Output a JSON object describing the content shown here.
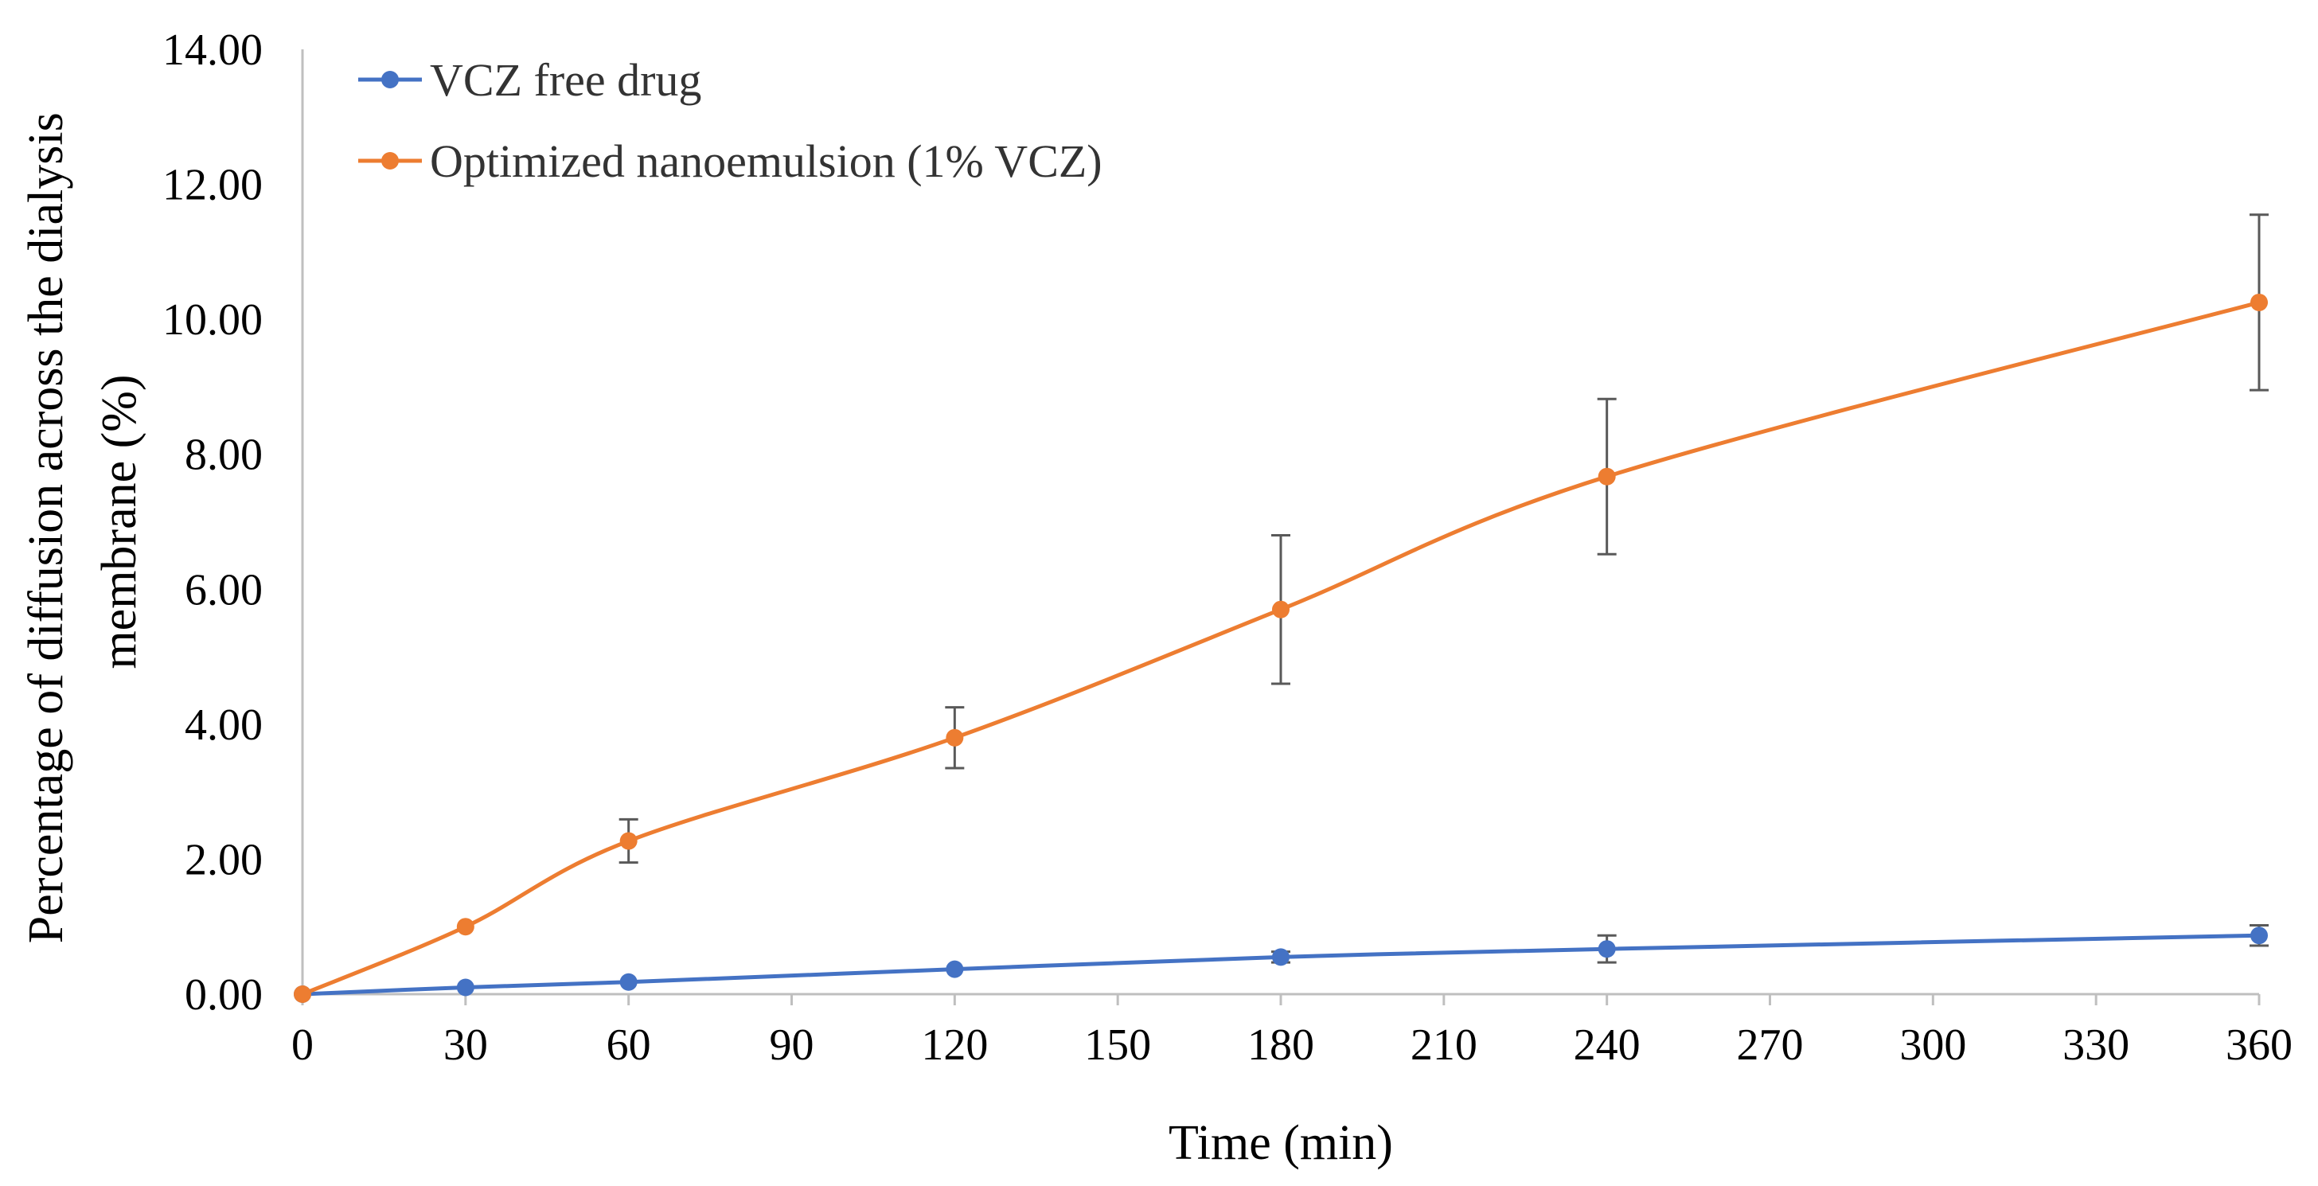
{
  "chart_data": {
    "type": "line",
    "xlabel": "Time (min)",
    "ylabel_lines": [
      "Percentage of diffusion across the dialysis",
      "membrane (%)"
    ],
    "xlim": [
      0,
      360
    ],
    "ylim": [
      0,
      14
    ],
    "xticks": [
      "0",
      "30",
      "60",
      "90",
      "120",
      "150",
      "180",
      "210",
      "240",
      "270",
      "300",
      "330",
      "360"
    ],
    "xtick_values": [
      0,
      30,
      60,
      90,
      120,
      150,
      180,
      210,
      240,
      270,
      300,
      330,
      360
    ],
    "yticks": [
      "0.00",
      "2.00",
      "4.00",
      "6.00",
      "8.00",
      "10.00",
      "12.00",
      "14.00"
    ],
    "ytick_values": [
      0,
      2,
      4,
      6,
      8,
      10,
      12,
      14
    ],
    "grid": false,
    "legend_position": "top-left",
    "series": [
      {
        "name": "VCZ free drug",
        "color": "#4472C4",
        "x": [
          0,
          30,
          60,
          120,
          180,
          240,
          360
        ],
        "y": [
          0.0,
          0.1,
          0.18,
          0.37,
          0.55,
          0.67,
          0.87
        ],
        "error": [
          0,
          0,
          0,
          0,
          0.08,
          0.2,
          0.15
        ]
      },
      {
        "name": "Optimized nanoemulsion (1% VCZ)",
        "color": "#ED7D31",
        "x": [
          0,
          30,
          60,
          120,
          180,
          240,
          360
        ],
        "y": [
          0.0,
          1.0,
          2.27,
          3.8,
          5.7,
          7.67,
          10.25
        ],
        "error": [
          0,
          0,
          0.32,
          0.45,
          1.1,
          1.15,
          1.3
        ]
      }
    ]
  }
}
